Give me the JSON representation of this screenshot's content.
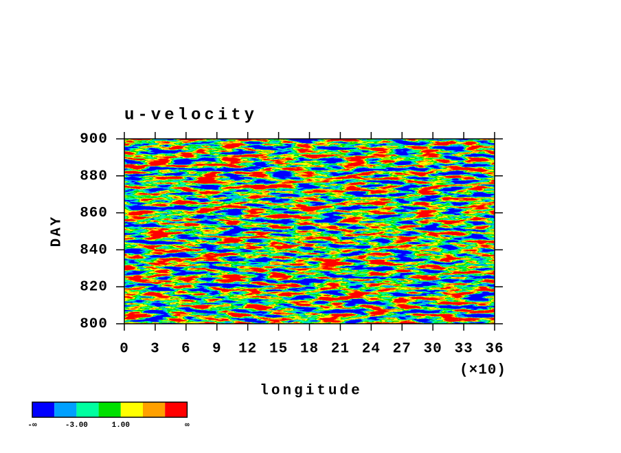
{
  "chart_data": {
    "type": "heatmap",
    "title": "u-velocity",
    "x_label": "longitude",
    "x_multiplier": "(×10)",
    "y_label": "DAY",
    "xlim": [
      0,
      36
    ],
    "xticks": [
      0,
      3,
      6,
      9,
      12,
      15,
      18,
      21,
      24,
      27,
      30,
      33,
      36
    ],
    "ylim": [
      800,
      900
    ],
    "yticks": [
      800,
      820,
      840,
      860,
      880,
      900
    ],
    "colorbar": {
      "colors": [
        "#0000ff",
        "#00a0ff",
        "#00ffa0",
        "#00e000",
        "#ffff00",
        "#ffa000",
        "#ff0000"
      ],
      "labels": [
        "-∞",
        null,
        "-3.00",
        null,
        "1.00",
        null,
        null,
        "∞"
      ]
    }
  }
}
